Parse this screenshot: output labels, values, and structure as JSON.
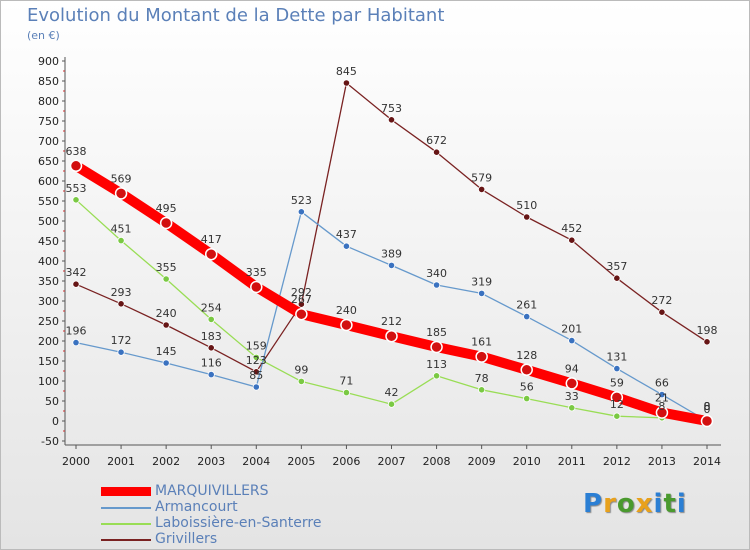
{
  "chart_data": {
    "type": "line",
    "title": "Evolution du Montant de la Dette par Habitant",
    "subtitle": "(en €)",
    "x": [
      "2000",
      "2001",
      "2002",
      "2003",
      "2004",
      "2005",
      "2006",
      "2007",
      "2008",
      "2009",
      "2010",
      "2011",
      "2012",
      "2013",
      "2014"
    ],
    "ylim": [
      -50,
      900
    ],
    "yticks": [
      -50,
      0,
      50,
      100,
      150,
      200,
      250,
      300,
      350,
      400,
      450,
      500,
      550,
      600,
      650,
      700,
      750,
      800,
      850,
      900
    ],
    "grid": false,
    "legend_position": "bottom-left",
    "series": [
      {
        "name": "MARQUIVILLERS",
        "color": "#ff0000",
        "marker_color": "#d21010",
        "values": [
          638,
          569,
          495,
          417,
          335,
          267,
          240,
          212,
          185,
          161,
          128,
          94,
          59,
          21,
          0
        ],
        "labels": [
          "638",
          "569",
          "495",
          "417",
          "335",
          "267",
          "240",
          "212",
          "185",
          "161",
          "128",
          "94",
          "59",
          "21",
          "0"
        ]
      },
      {
        "name": "Armancourt",
        "color": "#6699cc",
        "marker_color": "#3a72c0",
        "values": [
          196,
          172,
          145,
          116,
          85,
          523,
          437,
          389,
          340,
          319,
          261,
          201,
          131,
          66,
          0
        ],
        "labels": [
          "196",
          "172",
          "145",
          "116",
          "85",
          "523",
          "437",
          "389",
          "340",
          "319",
          "261",
          "201",
          "131",
          "66",
          "0"
        ]
      },
      {
        "name": "Laboissière-en-Santerre",
        "color": "#99dd55",
        "marker_color": "#7ac943",
        "values": [
          553,
          451,
          355,
          254,
          159,
          99,
          71,
          42,
          113,
          78,
          56,
          33,
          12,
          8,
          8
        ],
        "labels": [
          "553",
          "451",
          "355",
          "254",
          "159",
          "99",
          "71",
          "42",
          "113",
          "78",
          "56",
          "33",
          "12",
          "8",
          "8"
        ]
      },
      {
        "name": "Grivillers",
        "color": "#7a2222",
        "marker_color": "#661515",
        "values": [
          342,
          293,
          240,
          183,
          123,
          292,
          845,
          753,
          672,
          579,
          510,
          452,
          357,
          272,
          198
        ],
        "labels": [
          "342",
          "293",
          "240",
          "183",
          "123",
          "292",
          "845",
          "753",
          "672",
          "579",
          "510",
          "452",
          "357",
          "272",
          "198"
        ]
      }
    ]
  },
  "logo": {
    "letters": [
      "P",
      "r",
      "o",
      "x",
      "i",
      "t",
      "i"
    ],
    "colors": [
      "#2b7fd4",
      "#e8a11c",
      "#4a9a2e",
      "#e8a11c",
      "#2b7fd4",
      "#4a9a2e",
      "#2b7fd4"
    ]
  }
}
